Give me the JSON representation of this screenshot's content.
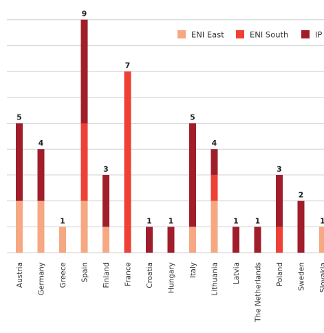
{
  "chart_data": {
    "type": "bar",
    "stacked": true,
    "categories": [
      "Austria",
      "Germany",
      "Greece",
      "Spain",
      "Finland",
      "France",
      "Croatia",
      "Hungary",
      "Italy",
      "Lithuania",
      "Latvia",
      "The Netherlands",
      "Poland",
      "Sweden",
      "Slovakia"
    ],
    "series": [
      {
        "name": "ENI East",
        "color": "#F5A882",
        "values": [
          2,
          2,
          1,
          2,
          1,
          0,
          0,
          0,
          1,
          2,
          0,
          0,
          0,
          0,
          1
        ]
      },
      {
        "name": "ENI South",
        "color": "#EE4035",
        "values": [
          0,
          0,
          0,
          3,
          0,
          7,
          0,
          0,
          0,
          1,
          0,
          0,
          1,
          0,
          0
        ]
      },
      {
        "name": "IP",
        "color": "#A01D2A",
        "values": [
          3,
          2,
          0,
          4,
          2,
          0,
          1,
          1,
          4,
          1,
          1,
          1,
          2,
          2,
          0
        ]
      }
    ],
    "totals": [
      5,
      4,
      1,
      9,
      3,
      7,
      1,
      1,
      5,
      4,
      1,
      1,
      3,
      2,
      1
    ],
    "ylim": [
      0,
      9
    ],
    "grid": true,
    "legend_position": "top-right",
    "title": "",
    "xlabel": "",
    "ylabel": ""
  }
}
